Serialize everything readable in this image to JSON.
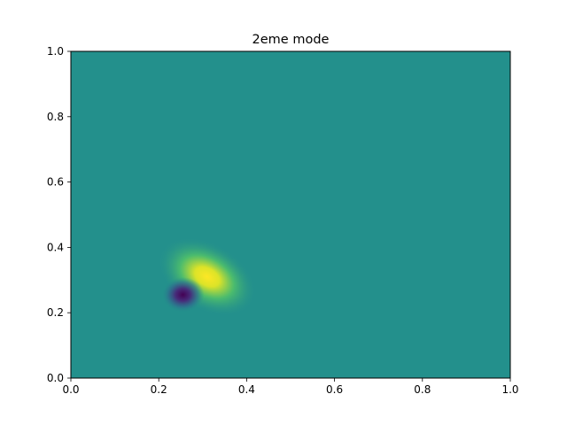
{
  "chart_data": {
    "type": "heatmap",
    "title": "2eme mode",
    "xlabel": "",
    "ylabel": "",
    "xlim": [
      0.0,
      1.0
    ],
    "ylim": [
      0.0,
      1.0
    ],
    "xticks": [
      "0.0",
      "0.2",
      "0.4",
      "0.6",
      "0.8",
      "1.0"
    ],
    "yticks": [
      "0.0",
      "0.2",
      "0.4",
      "0.6",
      "0.8",
      "1.0"
    ],
    "colormap": "viridis",
    "background_value": 0.0,
    "grid": false,
    "features": [
      {
        "kind": "maximum",
        "x": 0.31,
        "y": 0.31,
        "value": 1.0
      },
      {
        "kind": "minimum",
        "x": 0.255,
        "y": 0.255,
        "value": -1.0
      }
    ]
  }
}
